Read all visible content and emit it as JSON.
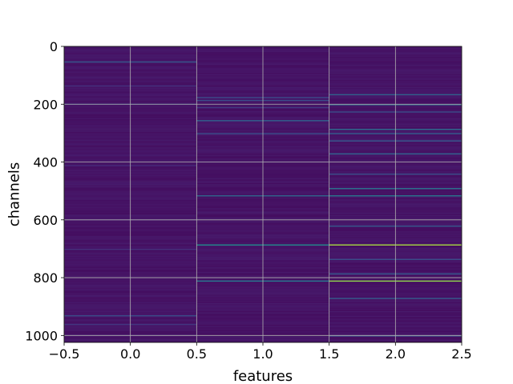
{
  "chart_data": {
    "type": "heatmap",
    "title": "",
    "xlabel": "features",
    "ylabel": "channels",
    "xlim": [
      -0.5,
      2.5
    ],
    "ylim": [
      1024,
      0
    ],
    "y_inverted": true,
    "grid": true,
    "colormap": "viridis",
    "n_rows": 1024,
    "columns": [
      0,
      1,
      2
    ],
    "xticks": [
      -0.5,
      0.0,
      0.5,
      1.0,
      1.5,
      2.0,
      2.5
    ],
    "xtick_labels": [
      "−0.5",
      "0.0",
      "0.5",
      "1.0",
      "1.5",
      "2.0",
      "2.5"
    ],
    "yticks": [
      0,
      200,
      400,
      600,
      800,
      1000
    ],
    "ytick_labels": [
      "0",
      "200",
      "400",
      "600",
      "800",
      "1000"
    ],
    "background_level": 0.05,
    "highlights": [
      {
        "column": 0,
        "rows": [
          {
            "y": 52,
            "v": 0.35
          },
          {
            "y": 135,
            "v": 0.18
          },
          {
            "y": 198,
            "v": 0.22
          },
          {
            "y": 410,
            "v": 0.15
          },
          {
            "y": 700,
            "v": 0.18
          },
          {
            "y": 930,
            "v": 0.3
          },
          {
            "y": 960,
            "v": 0.2
          }
        ]
      },
      {
        "column": 1,
        "rows": [
          {
            "y": 175,
            "v": 0.28
          },
          {
            "y": 185,
            "v": 0.3
          },
          {
            "y": 210,
            "v": 0.22
          },
          {
            "y": 255,
            "v": 0.4
          },
          {
            "y": 300,
            "v": 0.3
          },
          {
            "y": 515,
            "v": 0.42
          },
          {
            "y": 685,
            "v": 0.6
          },
          {
            "y": 810,
            "v": 0.5
          }
        ]
      },
      {
        "column": 2,
        "rows": [
          {
            "y": 165,
            "v": 0.4
          },
          {
            "y": 200,
            "v": 0.42
          },
          {
            "y": 225,
            "v": 0.3
          },
          {
            "y": 285,
            "v": 0.45
          },
          {
            "y": 300,
            "v": 0.38
          },
          {
            "y": 325,
            "v": 0.35
          },
          {
            "y": 370,
            "v": 0.4
          },
          {
            "y": 440,
            "v": 0.3
          },
          {
            "y": 490,
            "v": 0.48
          },
          {
            "y": 515,
            "v": 0.5
          },
          {
            "y": 620,
            "v": 0.35
          },
          {
            "y": 685,
            "v": 0.92
          },
          {
            "y": 735,
            "v": 0.3
          },
          {
            "y": 785,
            "v": 0.35
          },
          {
            "y": 810,
            "v": 0.9
          },
          {
            "y": 870,
            "v": 0.38
          },
          {
            "y": 1000,
            "v": 0.3
          }
        ]
      }
    ]
  }
}
